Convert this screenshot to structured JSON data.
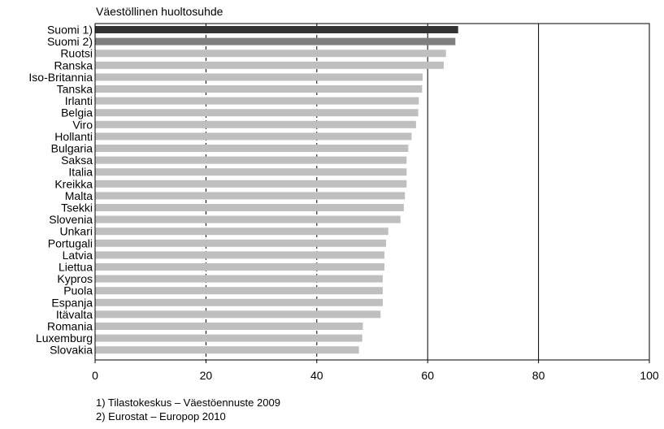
{
  "chart_data": {
    "type": "bar",
    "orientation": "horizontal",
    "title": "Väestöllinen huoltosuhde",
    "xlabel": "",
    "ylabel": "",
    "xlim": [
      0,
      100
    ],
    "xticks": [
      0,
      20,
      40,
      60,
      80,
      100
    ],
    "grid": "vertical lines at 20, 40 (dashed) and 60, 80 (solid)",
    "legend": "none",
    "colors": {
      "highlight_1": "#333333",
      "highlight_2": "#7f7f7f",
      "default_bar": "#bfbfbf",
      "gridline": "#000000"
    },
    "categories": [
      "Suomi 1)",
      "Suomi 2)",
      "Ruotsi",
      "Ranska",
      "Iso-Britannia",
      "Tanska",
      "Irlanti",
      "Belgia",
      "Viro",
      "Hollanti",
      "Bulgaria",
      "Saksa",
      "Italia",
      "Kreikka",
      "Malta",
      "Tsekki",
      "Slovenia",
      "Unkari",
      "Portugali",
      "Latvia",
      "Liettua",
      "Kypros",
      "Puola",
      "Espanja",
      "Itävalta",
      "Romania",
      "Luxemburg",
      "Slovakia"
    ],
    "values": [
      65.5,
      65,
      63.3,
      62.9,
      59.1,
      59,
      58.4,
      58.3,
      57.9,
      57.1,
      56.5,
      56.2,
      56.2,
      56.2,
      55.9,
      55.7,
      55.1,
      52.9,
      52.5,
      52.2,
      52.2,
      51.9,
      51.9,
      51.9,
      51.5,
      48.3,
      48.2,
      47.6
    ]
  },
  "footnotes": [
    "1) Tilastokeskus – Väestöennuste 2009",
    "2) Eurostat – Europop 2010"
  ]
}
